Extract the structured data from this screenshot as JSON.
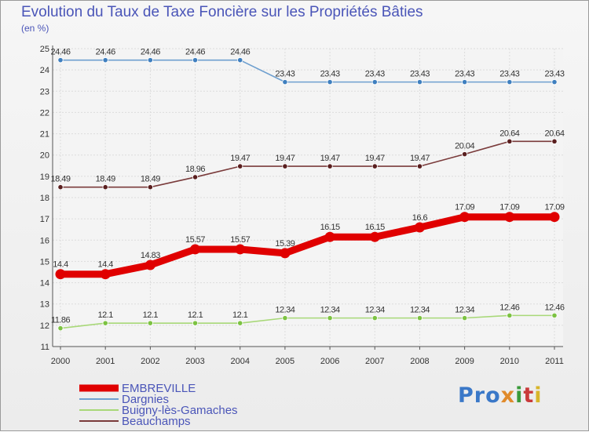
{
  "title": "Evolution du Taux de Taxe Foncière sur les Propriétés Bâties",
  "unit": "(en %)",
  "logo": {
    "parts": [
      "Pro",
      "x",
      "i",
      "t",
      "i"
    ]
  },
  "chart_data": {
    "type": "line",
    "title": "Evolution du Taux de Taxe Foncière sur les Propriétés Bâties",
    "subtitle": "(en %)",
    "xlabel": "",
    "ylabel": "",
    "x": [
      "2000",
      "2001",
      "2002",
      "2003",
      "2004",
      "2005",
      "2006",
      "2007",
      "2008",
      "2009",
      "2010",
      "2011"
    ],
    "ylim": [
      11,
      25
    ],
    "yticks": [
      "11",
      "12",
      "13",
      "14",
      "15",
      "16",
      "17",
      "18",
      "19",
      "20",
      "21",
      "22",
      "23",
      "24",
      "25"
    ],
    "grid": true,
    "legend_position": "bottom-left",
    "series": [
      {
        "name": "EMBREVILLE",
        "color": "#e00000",
        "emphasis": "thick",
        "values": [
          14.4,
          14.4,
          14.83,
          15.57,
          15.57,
          15.39,
          16.15,
          16.15,
          16.6,
          17.09,
          17.09,
          17.09
        ],
        "labels": [
          "14.4",
          "14.4",
          "14.83",
          "15.57",
          "15.57",
          "15.39",
          "16.15",
          "16.15",
          "16.6",
          "17.09",
          "17.09",
          "17.09"
        ]
      },
      {
        "name": "Dargnies",
        "color": "#6e9fcf",
        "marker_color": "#3f7fbf",
        "values": [
          24.46,
          24.46,
          24.46,
          24.46,
          24.46,
          23.43,
          23.43,
          23.43,
          23.43,
          23.43,
          23.43,
          23.43
        ],
        "labels": [
          "24.46",
          "24.46",
          "24.46",
          "24.46",
          "24.46",
          "23.43",
          "23.43",
          "23.43",
          "23.43",
          "23.43",
          "23.43",
          "23.43"
        ]
      },
      {
        "name": "Buigny-lès-Gamaches",
        "color": "#a8d878",
        "marker_color": "#7cc242",
        "values": [
          11.86,
          12.1,
          12.1,
          12.1,
          12.1,
          12.34,
          12.34,
          12.34,
          12.34,
          12.34,
          12.46,
          12.46
        ],
        "labels": [
          "11.86",
          "12.1",
          "12.1",
          "12.1",
          "12.1",
          "12.34",
          "12.34",
          "12.34",
          "12.34",
          "12.34",
          "12.46",
          "12.46"
        ]
      },
      {
        "name": "Beauchamps",
        "color": "#7a3b3b",
        "marker_color": "#5a1f1f",
        "values": [
          18.49,
          18.49,
          18.49,
          18.96,
          19.47,
          19.47,
          19.47,
          19.47,
          19.47,
          20.04,
          20.64,
          20.64
        ],
        "labels": [
          "18.49",
          "18.49",
          "18.49",
          "18.96",
          "19.47",
          "19.47",
          "19.47",
          "19.47",
          "19.47",
          "20.04",
          "20.64",
          "20.64"
        ]
      }
    ]
  }
}
